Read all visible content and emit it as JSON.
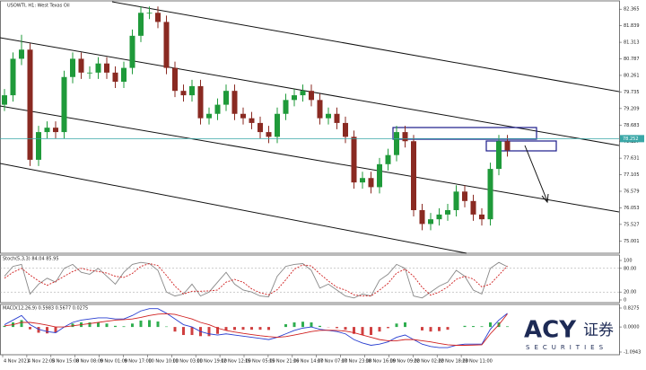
{
  "chart_data": {
    "type": "candlestick",
    "title": "USOWTI, H1: West Texas Oil",
    "open": [
      79.33,
      79.63,
      80.79,
      81.08,
      77.58,
      78.46,
      78.6,
      78.46,
      80.21,
      80.79,
      80.35,
      80.35,
      80.64,
      80.35,
      80.06,
      80.5,
      81.52,
      82.25,
      82.25,
      81.96,
      80.5,
      79.77,
      79.63,
      79.92,
      78.9,
      79.04,
      79.33,
      79.77,
      79.04,
      78.9,
      78.75,
      78.46,
      78.31,
      79.04,
      79.48,
      79.63,
      79.77,
      79.48,
      78.9,
      79.04,
      78.75,
      78.31,
      76.86,
      77.0,
      76.71,
      77.44,
      77.73,
      78.46,
      78.17,
      75.98,
      75.54,
      75.69,
      75.84,
      75.98,
      76.57,
      76.27,
      75.84,
      75.69,
      77.29,
      78.17
    ],
    "high": [
      79.83,
      80.99,
      81.55,
      81.28,
      78.66,
      78.8,
      78.8,
      80.41,
      80.99,
      80.99,
      80.55,
      80.84,
      80.84,
      80.55,
      80.7,
      81.72,
      82.45,
      82.45,
      82.45,
      82.16,
      80.7,
      79.97,
      80.12,
      80.12,
      79.24,
      79.53,
      79.97,
      79.97,
      79.24,
      79.1,
      78.95,
      78.66,
      79.24,
      79.68,
      79.83,
      79.97,
      79.97,
      79.68,
      79.24,
      79.24,
      78.95,
      78.51,
      77.2,
      77.2,
      77.64,
      77.93,
      78.66,
      78.66,
      78.37,
      76.18,
      75.89,
      76.04,
      76.18,
      76.77,
      76.77,
      76.47,
      76.04,
      77.49,
      78.37,
      78.37
    ],
    "low": [
      79.13,
      79.43,
      80.59,
      77.38,
      77.38,
      78.26,
      78.26,
      78.26,
      80.01,
      80.15,
      80.15,
      80.15,
      80.15,
      79.86,
      79.86,
      80.3,
      81.32,
      82.05,
      81.76,
      80.3,
      79.57,
      79.43,
      79.43,
      78.7,
      78.7,
      78.84,
      79.13,
      78.84,
      78.7,
      78.55,
      78.26,
      78.11,
      78.11,
      78.84,
      79.28,
      79.43,
      79.28,
      78.7,
      78.7,
      78.55,
      78.11,
      76.66,
      76.66,
      76.51,
      76.51,
      77.24,
      77.53,
      77.97,
      75.78,
      75.34,
      75.34,
      75.49,
      75.64,
      75.78,
      76.07,
      75.64,
      75.49,
      75.49,
      77.09,
      77.68
    ],
    "close": [
      79.63,
      80.79,
      81.08,
      77.58,
      78.46,
      78.6,
      78.46,
      80.21,
      80.79,
      80.35,
      80.35,
      80.64,
      80.35,
      80.06,
      80.5,
      81.52,
      82.25,
      82.25,
      81.96,
      80.5,
      79.77,
      79.63,
      79.92,
      78.9,
      79.04,
      79.33,
      79.77,
      79.04,
      78.9,
      78.75,
      78.46,
      78.31,
      79.04,
      79.48,
      79.63,
      79.77,
      79.48,
      78.9,
      79.04,
      78.75,
      78.31,
      76.86,
      77.0,
      76.71,
      77.44,
      77.73,
      78.46,
      78.17,
      75.98,
      75.54,
      75.69,
      75.84,
      75.98,
      76.57,
      76.27,
      75.84,
      75.69,
      77.29,
      78.17,
      77.88
    ],
    "up_color": "#1f9a3a",
    "down_color": "#8a2a22",
    "ylim": [
      74.61,
      82.6
    ],
    "yticks": [
      82.365,
      81.839,
      81.313,
      80.787,
      80.261,
      79.735,
      79.209,
      78.683,
      78.157,
      77.631,
      77.105,
      76.579,
      76.053,
      75.527,
      75.001
    ],
    "current_price": 78.252,
    "time_labels": [
      "4 Nov 2021",
      "4 Nov 22:00",
      "5 Nov 15:00",
      "8 Nov 08:00",
      "9 Nov 01:00",
      "9 Nov 17:00",
      "10 Nov 10:00",
      "11 Nov 03:00",
      "11 Nov 19:00",
      "12 Nov 12:00",
      "15 Nov 05:00",
      "15 Nov 21:00",
      "16 Nov 14:00",
      "17 Nov 07:00",
      "17 Nov 23:00",
      "18 Nov 16:00",
      "19 Nov 09:00",
      "22 Nov 02:00",
      "22 Nov 18:00",
      "23 Nov 11:00"
    ],
    "stochastic": {
      "label": "Stoch(5,3,3) 84.04 85.95",
      "main": [
        60,
        85,
        90,
        15,
        40,
        55,
        45,
        80,
        90,
        70,
        65,
        80,
        60,
        40,
        70,
        90,
        95,
        92,
        75,
        20,
        10,
        15,
        40,
        10,
        20,
        45,
        70,
        40,
        25,
        20,
        10,
        8,
        60,
        85,
        90,
        92,
        75,
        30,
        40,
        25,
        10,
        5,
        15,
        10,
        50,
        65,
        90,
        80,
        10,
        5,
        20,
        35,
        45,
        75,
        60,
        25,
        15,
        80,
        95,
        84.04
      ],
      "signal": [
        55,
        70,
        80,
        63,
        48,
        37,
        47,
        60,
        72,
        80,
        75,
        72,
        68,
        60,
        57,
        67,
        85,
        92,
        87,
        62,
        35,
        15,
        22,
        22,
        23,
        25,
        45,
        52,
        45,
        28,
        18,
        13,
        26,
        51,
        78,
        89,
        86,
        66,
        48,
        32,
        25,
        13,
        10,
        10,
        25,
        42,
        68,
        78,
        60,
        32,
        12,
        20,
        33,
        52,
        60,
        53,
        33,
        40,
        63,
        85.95
      ],
      "ylim": [
        0,
        100
      ],
      "yticks": [
        100,
        {
          "value": 80,
          "label": "80.00"
        },
        {
          "value": 20,
          "label": "20.00"
        },
        0
      ]
    },
    "macd": {
      "label": "MACD(12,26,9) 0.5983 0.5677 0.0275",
      "histogram": [
        0.05,
        0.2,
        0.3,
        -0.1,
        -0.25,
        -0.28,
        -0.25,
        0,
        0.15,
        0.2,
        0.2,
        0.2,
        0.15,
        0.05,
        0.03,
        0.15,
        0.28,
        0.3,
        0.24,
        0.02,
        -0.2,
        -0.35,
        -0.35,
        -0.4,
        -0.4,
        -0.3,
        -0.15,
        -0.13,
        -0.12,
        -0.12,
        -0.12,
        -0.13,
        0,
        0.12,
        0.2,
        0.23,
        0.2,
        0.05,
        -0.01,
        -0.05,
        -0.12,
        -0.3,
        -0.35,
        -0.35,
        -0.2,
        -0.05,
        0.15,
        0.2,
        0,
        -0.15,
        -0.2,
        -0.18,
        -0.12,
        0,
        0.05,
        0.04,
        0.03,
        0.2,
        0.2,
        0.0275
      ],
      "macd": [
        0.1,
        0.3,
        0.5,
        0.1,
        -0.1,
        -0.2,
        -0.25,
        0,
        0.2,
        0.3,
        0.35,
        0.4,
        0.4,
        0.35,
        0.35,
        0.5,
        0.7,
        0.8,
        0.8,
        0.6,
        0.35,
        0.1,
        0,
        -0.2,
        -0.3,
        -0.35,
        -0.3,
        -0.35,
        -0.4,
        -0.45,
        -0.5,
        -0.55,
        -0.45,
        -0.3,
        -0.15,
        -0.05,
        0,
        -0.1,
        -0.15,
        -0.2,
        -0.3,
        -0.55,
        -0.7,
        -0.8,
        -0.75,
        -0.65,
        -0.45,
        -0.35,
        -0.55,
        -0.75,
        -0.85,
        -0.9,
        -0.9,
        -0.8,
        -0.75,
        -0.75,
        -0.75,
        -0.1,
        0.3,
        0.5983
      ],
      "signal": [
        0.05,
        0.1,
        0.2,
        0.2,
        0.15,
        0.08,
        0,
        0,
        0.05,
        0.1,
        0.15,
        0.2,
        0.25,
        0.3,
        0.32,
        0.35,
        0.42,
        0.5,
        0.56,
        0.58,
        0.55,
        0.45,
        0.35,
        0.2,
        0.1,
        -0.05,
        -0.15,
        -0.22,
        -0.28,
        -0.33,
        -0.38,
        -0.42,
        -0.45,
        -0.42,
        -0.35,
        -0.28,
        -0.2,
        -0.15,
        -0.14,
        -0.15,
        -0.18,
        -0.25,
        -0.35,
        -0.45,
        -0.55,
        -0.6,
        -0.6,
        -0.55,
        -0.55,
        -0.6,
        -0.65,
        -0.72,
        -0.78,
        -0.8,
        -0.8,
        -0.79,
        -0.78,
        -0.3,
        0.1,
        0.5677
      ],
      "ylim": [
        -1.0943,
        0.8275
      ],
      "yticks": [
        0.8275,
        {
          "value": 0,
          "label": "0.0000"
        },
        -1.0943
      ]
    }
  },
  "logo": {
    "brand": "ACY",
    "cn": "证券",
    "sub": "SECURITIES"
  }
}
